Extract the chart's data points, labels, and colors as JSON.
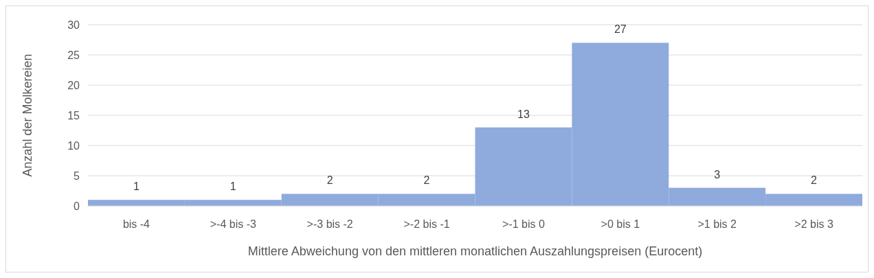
{
  "chart_data": {
    "type": "bar",
    "xlabel": "Mittlere Abweichung von den mittleren monatlichen Auszahlungspreisen (Eurocent)",
    "ylabel": "Anzahl der Molkereien",
    "categories": [
      "bis -4",
      ">-4 bis -3",
      ">-3 bis -2",
      ">-2 bis -1",
      ">-1 bis 0",
      ">0 bis 1",
      ">1 bis 2",
      ">2 bis 3"
    ],
    "values": [
      1,
      1,
      2,
      2,
      13,
      27,
      3,
      2
    ],
    "color": "#8faadc",
    "ylim": [
      0,
      30
    ],
    "yticks": [
      0,
      5,
      10,
      15,
      20,
      25,
      30
    ],
    "grid": "y",
    "data_labels": true
  }
}
